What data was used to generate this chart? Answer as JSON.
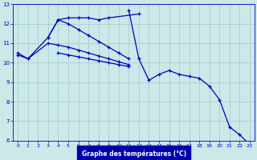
{
  "title": "Graphe des températures (°C)",
  "bg_color": "#cce8e8",
  "line_color": "#0000bb",
  "xlim": [
    -0.5,
    23.5
  ],
  "ylim": [
    6,
    13
  ],
  "xticks": [
    0,
    1,
    2,
    3,
    4,
    5,
    6,
    7,
    8,
    9,
    10,
    11,
    12,
    13,
    14,
    15,
    16,
    17,
    18,
    19,
    20,
    21,
    22,
    23
  ],
  "yticks": [
    6,
    7,
    8,
    9,
    10,
    11,
    12,
    13
  ],
  "series": [
    {
      "x": [
        0,
        1,
        3,
        4,
        5,
        6,
        7,
        8,
        9,
        12
      ],
      "y": [
        10.5,
        10.2,
        11.3,
        12.2,
        12.3,
        12.3,
        12.3,
        12.2,
        12.3,
        12.5
      ]
    },
    {
      "x": [
        3,
        4,
        5,
        6,
        7,
        8,
        9,
        10,
        11
      ],
      "y": [
        11.3,
        12.2,
        12.0,
        11.7,
        11.4,
        11.1,
        10.8,
        10.5,
        10.2
      ]
    },
    {
      "x": [
        4,
        5,
        6,
        7,
        8,
        9,
        10,
        11
      ],
      "y": [
        10.5,
        10.4,
        10.3,
        10.2,
        10.1,
        10.0,
        9.9,
        9.8
      ]
    },
    {
      "x": [
        0,
        1,
        3,
        4,
        5,
        6,
        7,
        8,
        9,
        10,
        11
      ],
      "y": [
        10.4,
        10.2,
        11.0,
        10.9,
        10.8,
        10.65,
        10.5,
        10.35,
        10.2,
        10.05,
        9.9
      ]
    },
    {
      "x": [
        11,
        12,
        13,
        14,
        15,
        16,
        17,
        18,
        19,
        20,
        21,
        22,
        23
      ],
      "y": [
        12.7,
        10.2,
        9.1,
        9.4,
        9.6,
        9.4,
        9.3,
        9.2,
        8.8,
        8.1,
        6.7,
        6.3,
        5.8
      ]
    }
  ],
  "grid_color": "#a0cccc",
  "xlabel_bg": "#0000aa"
}
